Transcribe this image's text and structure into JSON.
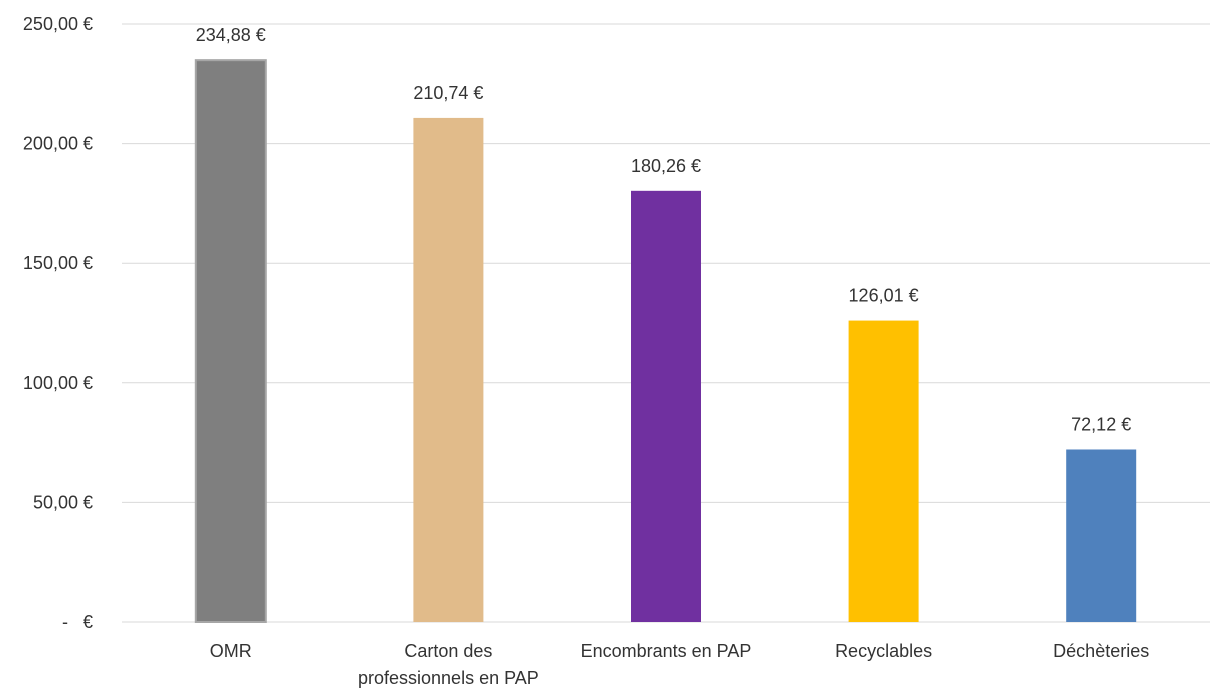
{
  "chart_data": {
    "type": "bar",
    "title": "",
    "xlabel": "",
    "ylabel": "",
    "categories": [
      [
        "OMR"
      ],
      [
        "Carton des",
        "professionnels en PAP"
      ],
      [
        "Encombrants en PAP"
      ],
      [
        "Recyclables"
      ],
      [
        "Déchèteries"
      ]
    ],
    "values": [
      234.88,
      210.74,
      180.26,
      126.01,
      72.12
    ],
    "data_labels": [
      "234,88 €",
      "210,74 €",
      "180,26 €",
      "126,01 €",
      "72,12 €"
    ],
    "colors": [
      "#7f7f7f",
      "#e1bb8a",
      "#7030a0",
      "#ffc000",
      "#4f81bd"
    ],
    "ylim": [
      0,
      250
    ],
    "yticks": [
      0,
      50,
      100,
      150,
      200,
      250
    ],
    "ytick_labels": [
      "-   €",
      "50,00 €",
      "100,00 €",
      "150,00 €",
      "200,00 €",
      "250,00 €"
    ],
    "grid": true,
    "legend": "none"
  }
}
